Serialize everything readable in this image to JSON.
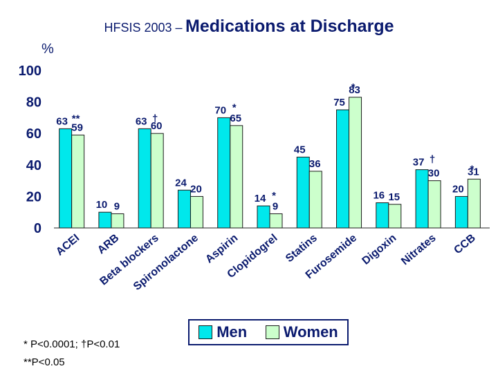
{
  "title": {
    "prefix": "HFSIS 2003 –",
    "main": "Medications at Discharge"
  },
  "footnotes": [
    "* P<0.0001;   †P<0.01",
    "**P<0.05"
  ],
  "colors": {
    "men": "#00e8ec",
    "women": "#ccffcc",
    "text": "#0a1a6e"
  },
  "chart_data": {
    "type": "bar",
    "ylabel": "%",
    "ylim": [
      0,
      100
    ],
    "yticks": [
      0,
      20,
      40,
      60,
      80,
      100
    ],
    "categories": [
      "ACEI",
      "ARB",
      "Beta blockers",
      "Spironolactone",
      "Aspirin",
      "Clopidogrel",
      "Statins",
      "Furosemide",
      "Digoxin",
      "Nitrates",
      "CCB"
    ],
    "series": [
      {
        "name": "Men",
        "values": [
          63,
          10,
          63,
          24,
          70,
          14,
          45,
          75,
          16,
          37,
          20
        ]
      },
      {
        "name": "Women",
        "values": [
          59,
          9,
          60,
          20,
          65,
          9,
          36,
          83,
          15,
          30,
          31
        ]
      }
    ],
    "annotations": [
      "**",
      "",
      "†",
      "",
      "*",
      "*",
      "",
      "*",
      "",
      "†",
      "*"
    ],
    "legend": "bottom-center"
  }
}
